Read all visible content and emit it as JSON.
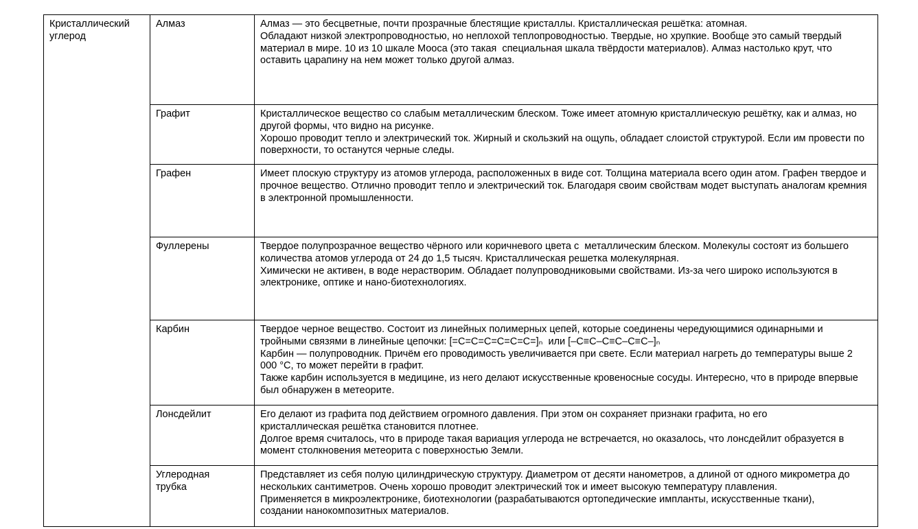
{
  "page": {
    "background_color": "#ffffff",
    "border_color": "#000000",
    "text_color": "#000000"
  },
  "table": {
    "category": "Кристаллический углерод",
    "rows": [
      {
        "name": "Алмаз",
        "description": "Алмаз — это бесцветные, почти прозрачные блестящие кристаллы. Кристаллическая решётка: атомная.\nОбладают низкой электропроводностью, но неплохой теплопроводностью. Твердые, но хрупкие. Вообще это самый твердый материал в мире. 10 из 10 шкале Мооса (это такая  специальная шкала твёрдости материалов). Алмаз настолько крут, что оставить царапину на нем может только другой алмаз."
      },
      {
        "name": "Графит",
        "description": "Кристаллическое вещество со слабым металлическим блеском. Тоже имеет атомную кристаллическую решётку, как и алмаз, но другой формы, что видно на рисунке.\nХорошо проводит тепло и электрический ток. Жирный и скользкий на ощупь, обладает слоистой структурой. Если им провести по поверхности, то останутся черные следы."
      },
      {
        "name": "Графен",
        "description": "Имеет плоскую структуру из атомов углерода, расположенных в виде сот. Толщина материала всего один атом. Графен твердое и прочное вещество. Отлично проводит тепло и электрический ток. Благодаря своим свойствам модет выступать аналогам кремния в электронной промышленности."
      },
      {
        "name": "Фуллерены",
        "description": "Твердое полупрозрачное вещество чёрного или коричневого цвета с  металлическим блеском. Молекулы состоят из большего количества атомов углерода от 24 до 1,5 тысяч. Кристаллическая решетка молекулярная.\nХимически не активен, в воде нерастворим. Обладает полупроводниковыми свойствами. Из-за чего широко используются в электронике, оптике и нано-биотехнологиях."
      },
      {
        "name": "Карбин",
        "description": "Твердое черное вещество. Состоит из линейных полимерных цепей, которые соединены чередующимися одинарными и тройными связями в линейные цепочки: [=C=C=C=C=C=C=]ₙ  или [–C≡C–C≡C–C≡C–]ₙ\nКарбин — полупроводник. Причём его проводимость увеличивается при свете. Если материал нагреть до температуры выше 2 000 °С, то может перейти в графит.\nТакже карбин используется в медицине, из него делают искусственные кровеносные сосуды. Интересно, что в природе впервые был обнаружен в метеорите."
      },
      {
        "name": "Лонсдейлит",
        "description": "Его делают из графита под действием огромного давления. При этом он сохраняет признаки графита, но его\nкристаллическая решётка становится плотнее.\nДолгое время считалось, что в природе такая вариация углерода не встречается, но оказалось, что лонсдейлит образуется в момент столкновения метеорита с поверхностью Земли."
      },
      {
        "name": "Углеродная\nтрубка",
        "description": "Представляет из себя полую цилиндрическую структуру. Диаметром от десяти нанометров, а длиной от одного микрометра до нескольких сантиметров. Очень хорошо проводит электрический ток и имеет высокую температуру плавления.\nПрименяется в микроэлектронике, биотехнологии (разрабатываются ортопедические импланты, искусственные ткани),\nсоздании нанокомпозитных материалов."
      }
    ]
  }
}
